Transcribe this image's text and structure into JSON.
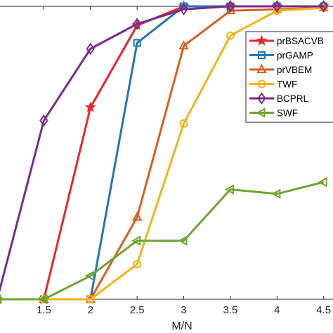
{
  "chart_data": {
    "type": "line",
    "xlabel": "M/N",
    "ylabel": "",
    "title": "",
    "xlim": [
      1,
      4.6
    ],
    "ylim": [
      0,
      1
    ],
    "x_ticks": [
      1.5,
      2,
      2.5,
      3,
      3.5,
      4,
      4.5
    ],
    "x_tick_labels": [
      "1.5",
      "2",
      "2.5",
      "3",
      "3.5",
      "4",
      "4.5"
    ],
    "grid": false,
    "legend_position": "top-right",
    "series": [
      {
        "name": "prBSACVB",
        "color": "#e8262b",
        "marker": "star",
        "x": [
          1,
          1.5,
          2,
          2.5,
          3,
          3.5,
          4,
          4.5
        ],
        "y": [
          0,
          0,
          0.655,
          0.935,
          1,
          1,
          1,
          1
        ]
      },
      {
        "name": "prGAMP",
        "color": "#1f78b4",
        "marker": "square",
        "x": [
          1,
          1.5,
          2,
          2.5,
          3,
          3.5,
          4,
          4.5
        ],
        "y": [
          0,
          0,
          0,
          0.875,
          1,
          1,
          1,
          1
        ]
      },
      {
        "name": "prVBEM",
        "color": "#d95f1f",
        "marker": "triangle-up",
        "x": [
          1,
          1.5,
          2,
          2.5,
          3,
          3.5,
          4,
          4.5
        ],
        "y": [
          0,
          0,
          0,
          0.28,
          0.865,
          0.985,
          0.99,
          0.995
        ]
      },
      {
        "name": "TWF",
        "color": "#f2b418",
        "marker": "circle",
        "x": [
          1,
          1.5,
          2,
          2.5,
          3,
          3.5,
          4,
          4.5
        ],
        "y": [
          0,
          0,
          0,
          0.12,
          0.6,
          0.9,
          0.985,
          0.995
        ]
      },
      {
        "name": "BCPRL",
        "color": "#7b2a8e",
        "marker": "diamond",
        "x": [
          1,
          1.5,
          2,
          2.5,
          3,
          3.5,
          4,
          4.5
        ],
        "y": [
          0,
          0.61,
          0.855,
          0.94,
          0.99,
          1,
          1,
          1
        ]
      },
      {
        "name": "SWF",
        "color": "#6ea532",
        "marker": "triangle-left",
        "x": [
          1,
          1.5,
          2,
          2.5,
          3,
          3.5,
          4,
          4.5
        ],
        "y": [
          0,
          0,
          0.08,
          0.2,
          0.2,
          0.375,
          0.36,
          0.4
        ]
      }
    ]
  }
}
